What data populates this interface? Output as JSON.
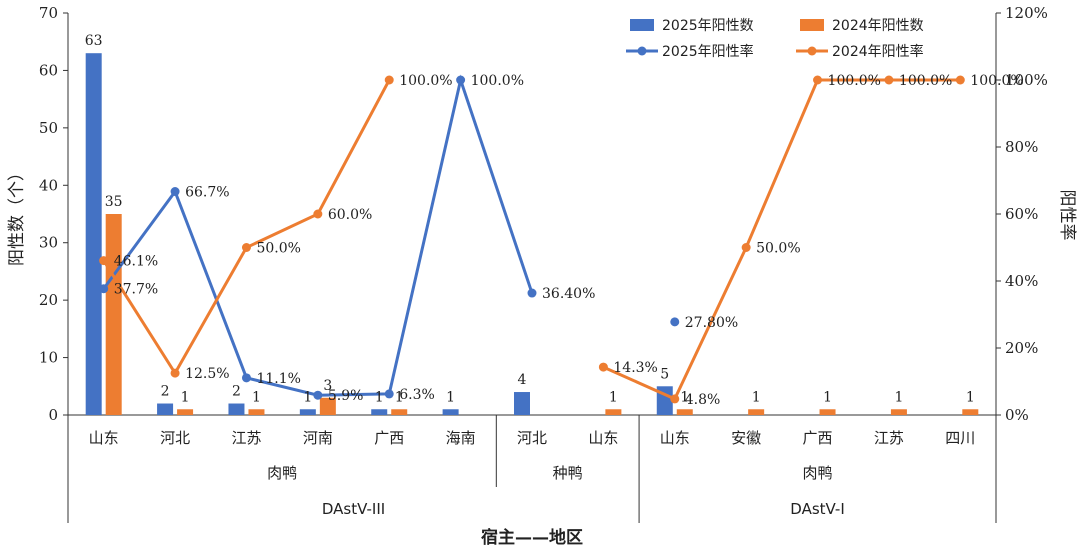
{
  "chart_data": {
    "type": "bar",
    "categories": [
      "山东",
      "河北",
      "江苏",
      "河南",
      "广西",
      "海南",
      "河北",
      "山东",
      "山东",
      "安徽",
      "广西",
      "江苏",
      "四川"
    ],
    "groups_level2": [
      {
        "label": "肉鸭",
        "from": 0,
        "to": 5
      },
      {
        "label": "种鸭",
        "from": 6,
        "to": 7
      },
      {
        "label": "肉鸭",
        "from": 8,
        "to": 12
      }
    ],
    "groups_level3": [
      {
        "label": "DAstV-III",
        "from": 0,
        "to": 7
      },
      {
        "label": "DAstV-I",
        "from": 8,
        "to": 12
      }
    ],
    "series": [
      {
        "name": "2025年阳性数",
        "kind": "bar",
        "axis": "left",
        "color": "#4472C4",
        "values": [
          63,
          2,
          2,
          1,
          1,
          1,
          4,
          null,
          5,
          null,
          null,
          null,
          null
        ],
        "labels": [
          "63",
          "2",
          "2",
          "1",
          "1",
          "1",
          "4",
          "",
          "5",
          "",
          "",
          "",
          ""
        ]
      },
      {
        "name": "2024年阳性数",
        "kind": "bar",
        "axis": "left",
        "color": "#ED7D31",
        "values": [
          35,
          1,
          1,
          3,
          1,
          null,
          null,
          1,
          1,
          1,
          1,
          1,
          1
        ],
        "labels": [
          "35",
          "1",
          "1",
          "3",
          "1",
          "",
          "",
          "1",
          "1",
          "1",
          "1",
          "1",
          "1"
        ]
      },
      {
        "name": "2025年阳性率",
        "kind": "line",
        "axis": "right",
        "color": "#4472C4",
        "values": [
          37.7,
          66.7,
          11.1,
          5.9,
          6.3,
          100.0,
          36.4,
          null,
          27.8,
          null,
          null,
          null,
          null
        ],
        "labels": [
          "37.7%",
          "66.7%",
          "11.1%",
          "5.9%",
          "6.3%",
          "100.0%",
          "36.40%",
          "",
          "27.80%",
          "",
          "",
          "",
          ""
        ]
      },
      {
        "name": "2024年阳性率",
        "kind": "line",
        "axis": "right",
        "color": "#ED7D31",
        "values": [
          46.1,
          12.5,
          50.0,
          60.0,
          100.0,
          null,
          null,
          14.3,
          4.8,
          50.0,
          100.0,
          100.0,
          100.0
        ],
        "labels": [
          "46.1%",
          "12.5%",
          "50.0%",
          "60.0%",
          "100.0%",
          "",
          "",
          "14.3%",
          "4.8%",
          "50.0%",
          "100.0%",
          "100.0%",
          "100.0%"
        ]
      }
    ],
    "xlabel": "宿主——地区",
    "ylabel": "阳性数（个）",
    "y2label": "阳性率",
    "ylim": [
      0,
      70
    ],
    "yticks": [
      "0",
      "10",
      "20",
      "30",
      "40",
      "50",
      "60",
      "70"
    ],
    "y2lim": [
      0,
      120
    ],
    "y2ticks": [
      "0%",
      "20%",
      "40%",
      "60%",
      "80%",
      "100%",
      "120%"
    ],
    "legend": "top-right",
    "grid": false
  }
}
